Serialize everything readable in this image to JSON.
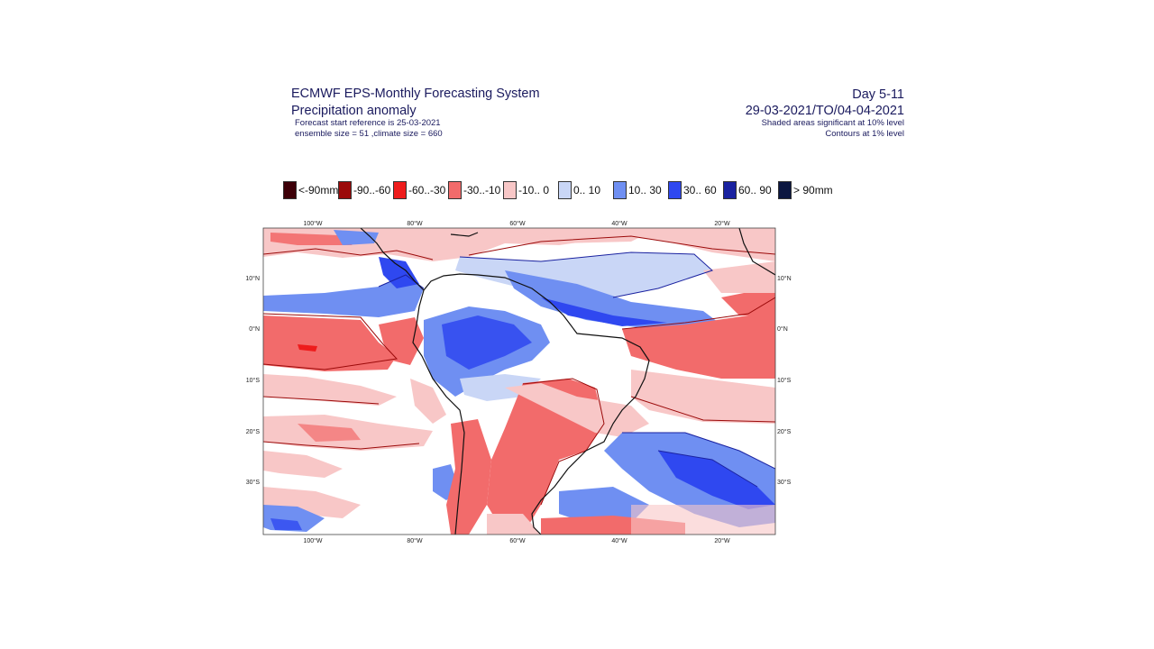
{
  "header": {
    "title": "ECMWF EPS-Monthly Forecasting System",
    "subtitle": "Precipitation anomaly",
    "forecast_ref": "Forecast start reference is 25-03-2021",
    "ensemble": "ensemble size = 51  ,climate size = 660",
    "period_label": "Day 5-11",
    "date_range": "29-03-2021/TO/04-04-2021",
    "shading_note": "Shaded areas significant at 10% level",
    "contour_note": "Contours at 1% level"
  },
  "legend": [
    {
      "label": "<-90mm",
      "color": "#3d0008"
    },
    {
      "label": "-90..-60",
      "color": "#9b0a0a"
    },
    {
      "label": "-60..-30",
      "color": "#ee1c1c"
    },
    {
      "label": "-30..-10",
      "color": "#f26b6b"
    },
    {
      "label": "-10..  0",
      "color": "#f8c7c7"
    },
    {
      "label": "0.. 10",
      "color": "#c9d6f6"
    },
    {
      "label": "10.. 30",
      "color": "#6f8ff2"
    },
    {
      "label": "30.. 60",
      "color": "#2f48f0"
    },
    {
      "label": "60.. 90",
      "color": "#1a22a0"
    },
    {
      "label": ">  90mm",
      "color": "#0b1640"
    }
  ],
  "map": {
    "lon_labels": [
      "100°W",
      "80°W",
      "60°W",
      "40°W",
      "20°W"
    ],
    "lat_labels": [
      "10°N",
      "0°N",
      "10°S",
      "20°S",
      "30°S"
    ],
    "coast_color": "#111111",
    "contour_color_neg": "#9b0a0a",
    "contour_color_pos": "#1a22a0"
  }
}
